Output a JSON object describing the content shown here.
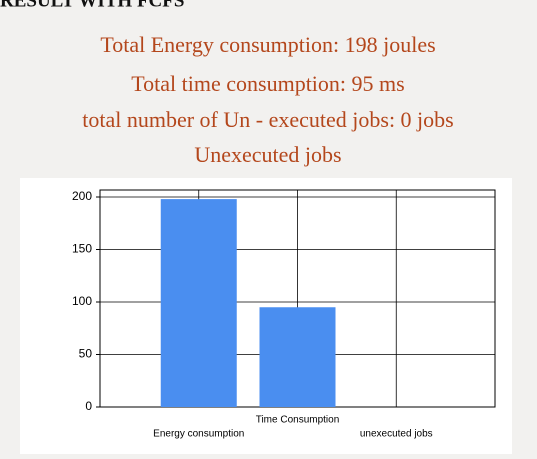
{
  "heading": "RESULT WITH FCFS",
  "lines": [
    "Total Energy consumption:     198 joules",
    "Total time consumption:   95 ms",
    "total number of Un - executed jobs:    0 jobs",
    "Unexecuted jobs"
  ],
  "chart_data": {
    "type": "bar",
    "categories": [
      "Energy consumption",
      "Time Consumption",
      "unexecuted jobs"
    ],
    "values": [
      198,
      95,
      0
    ],
    "color": "#4a8ef0",
    "ylim": [
      0,
      200
    ],
    "yticks": [
      0,
      50,
      100,
      150,
      200
    ],
    "grid": true
  }
}
